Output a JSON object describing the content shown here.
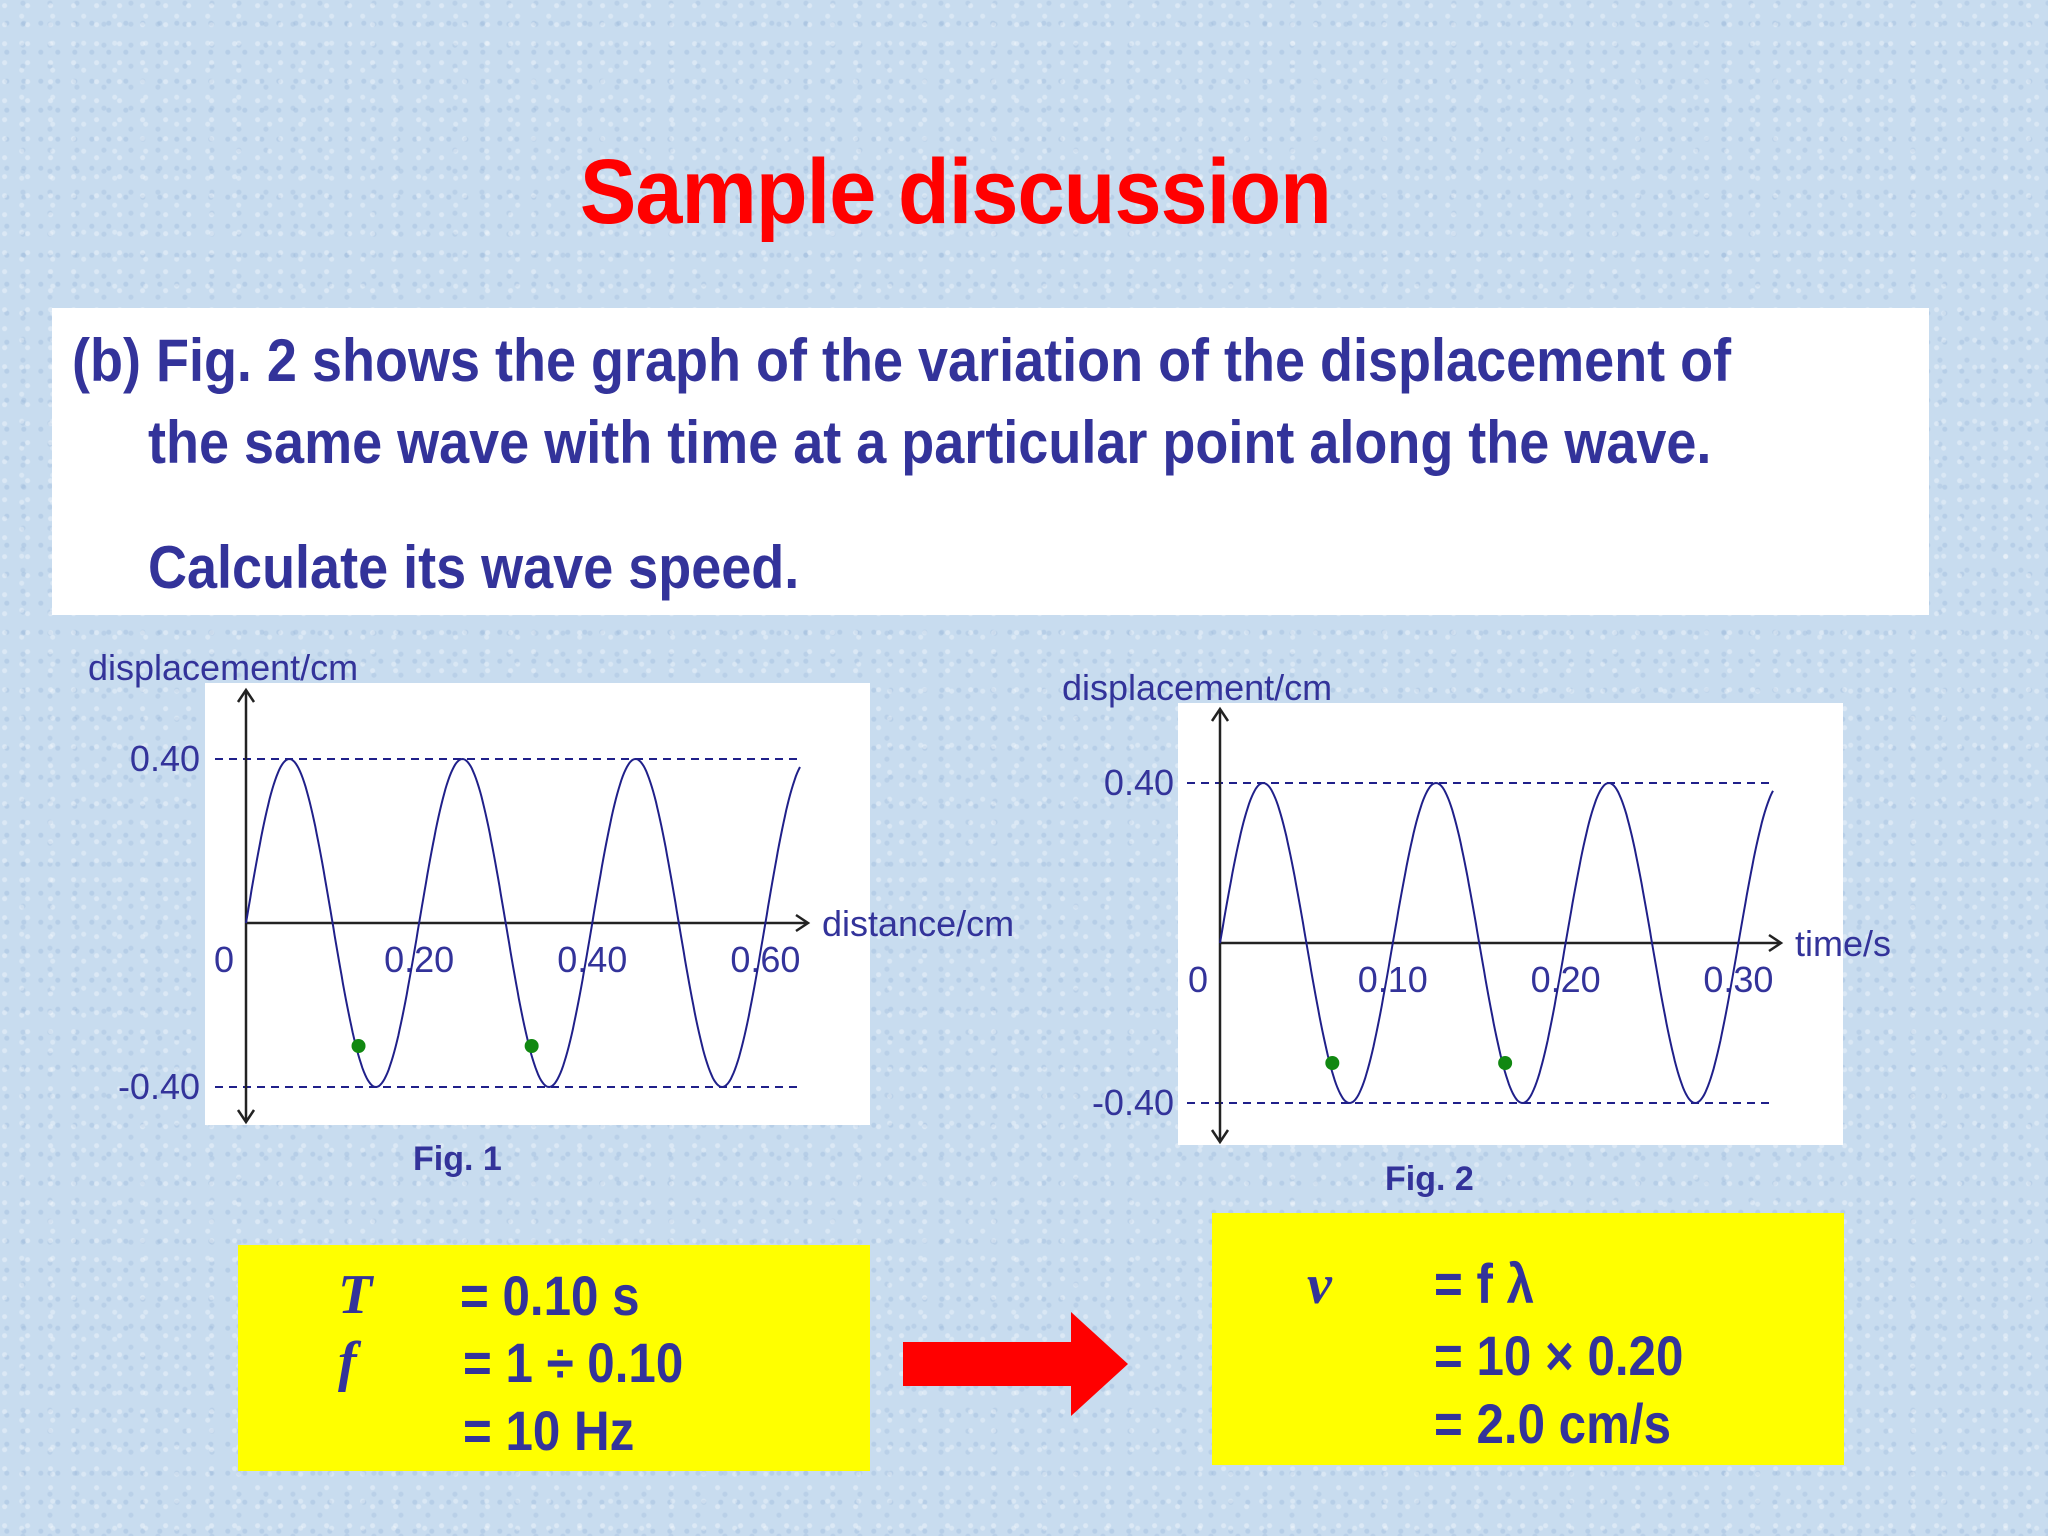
{
  "title": "Sample discussion",
  "question": {
    "line1": "(b) Fig. 2 shows the graph of the variation of the displacement of",
    "line2": "the same wave with time at a particular point along the wave.",
    "line3": "Calculate its wave speed."
  },
  "chart_data": [
    {
      "type": "line",
      "caption": "Fig. 1",
      "ylabel": "displacement/cm",
      "xlabel": "distance/cm",
      "xlim": [
        0,
        0.64
      ],
      "ylim": [
        -0.4,
        0.4
      ],
      "x_ticks": [
        "0",
        "0.20",
        "0.40",
        "0.60"
      ],
      "x_tick_values": [
        0,
        0.2,
        0.4,
        0.6
      ],
      "y_ticks": [
        "0.40",
        "-0.40"
      ],
      "y_tick_values": [
        0.4,
        -0.4
      ],
      "series": [
        {
          "amplitude": 0.4,
          "wavelength": 0.2,
          "x_range": [
            0,
            0.64
          ]
        }
      ],
      "markers": [
        {
          "x": 0.13,
          "y": -0.3
        },
        {
          "x": 0.33,
          "y": -0.3
        }
      ],
      "colors": {
        "wave": "#20208a",
        "marker": "#118811",
        "axis": "#222222",
        "dashed": "#20208a"
      }
    },
    {
      "type": "line",
      "caption": "Fig. 2",
      "ylabel": "displacement/cm",
      "xlabel": "time/s",
      "xlim": [
        0,
        0.32
      ],
      "ylim": [
        -0.4,
        0.4
      ],
      "x_ticks": [
        "0",
        "0.10",
        "0.20",
        "0.30"
      ],
      "x_tick_values": [
        0,
        0.1,
        0.2,
        0.3
      ],
      "y_ticks": [
        "0.40",
        "-0.40"
      ],
      "y_tick_values": [
        0.4,
        -0.4
      ],
      "series": [
        {
          "amplitude": 0.4,
          "period": 0.1,
          "x_range": [
            0,
            0.32
          ]
        }
      ],
      "markers": [
        {
          "x": 0.065,
          "y": -0.3
        },
        {
          "x": 0.165,
          "y": -0.3
        }
      ],
      "colors": {
        "wave": "#20208a",
        "marker": "#118811",
        "axis": "#222222",
        "dashed": "#20208a"
      }
    }
  ],
  "answer_left": {
    "row1_symbol": "T",
    "row1_value": "= 0.10 s",
    "row2_symbol": "f",
    "row2_value": "= 1 ÷ 0.10",
    "row3_value": "= 10 Hz"
  },
  "answer_right": {
    "row1_symbol": "v",
    "row1_value": "= f λ",
    "row2_value": "= 10 × 0.20",
    "row3_value": "= 2.0 cm/s"
  },
  "colors": {
    "title": "#ff0000",
    "text": "#33339a",
    "answer_box": "#ffff00",
    "arrow": "#ff0000"
  }
}
